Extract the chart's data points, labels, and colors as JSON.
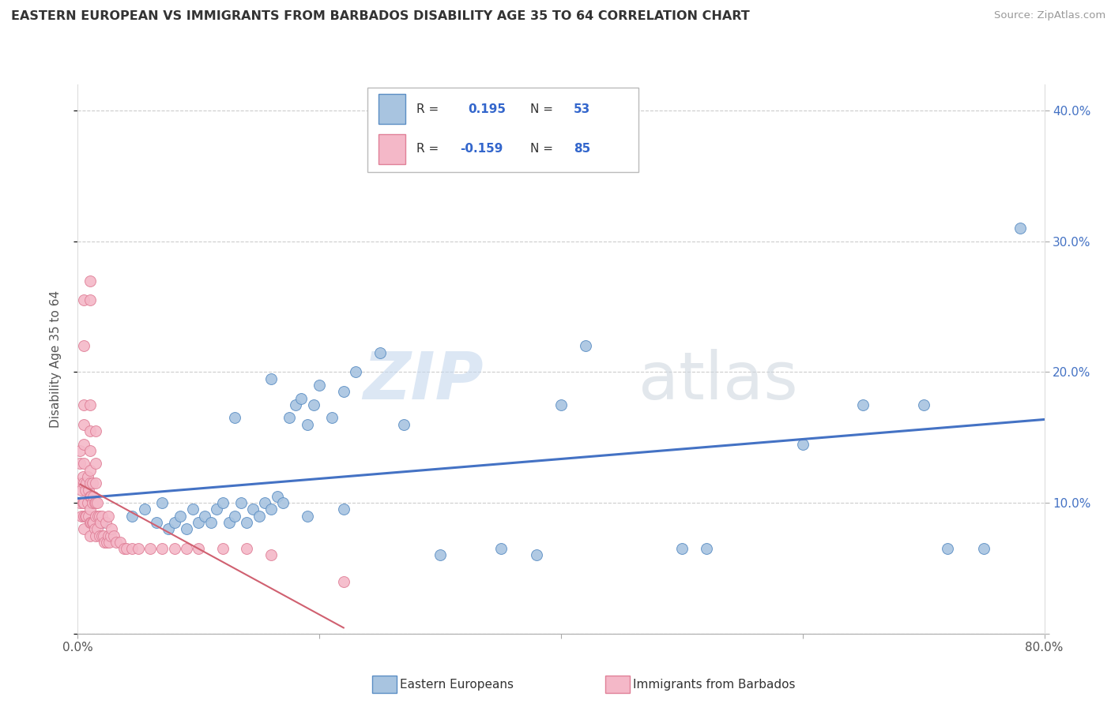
{
  "title": "EASTERN EUROPEAN VS IMMIGRANTS FROM BARBADOS DISABILITY AGE 35 TO 64 CORRELATION CHART",
  "source": "Source: ZipAtlas.com",
  "ylabel": "Disability Age 35 to 64",
  "xlim": [
    0.0,
    0.8
  ],
  "ylim": [
    0.0,
    0.42
  ],
  "xticks": [
    0.0,
    0.2,
    0.4,
    0.6,
    0.8
  ],
  "xtick_labels": [
    "0.0%",
    "",
    "",
    "",
    "80.0%"
  ],
  "yticks": [
    0.0,
    0.1,
    0.2,
    0.3,
    0.4
  ],
  "right_ytick_labels": [
    "",
    "10.0%",
    "20.0%",
    "30.0%",
    "40.0%"
  ],
  "eastern_color": "#a8c4e0",
  "barbados_color": "#f4b8c8",
  "eastern_edge_color": "#5b8ec4",
  "barbados_edge_color": "#e08098",
  "eastern_line_color": "#4472c4",
  "barbados_line_color": "#d06070",
  "grid_color": "#cccccc",
  "eastern_scatter_x": [
    0.02,
    0.045,
    0.055,
    0.065,
    0.07,
    0.075,
    0.08,
    0.085,
    0.09,
    0.095,
    0.1,
    0.105,
    0.11,
    0.115,
    0.12,
    0.125,
    0.13,
    0.135,
    0.14,
    0.145,
    0.15,
    0.155,
    0.16,
    0.165,
    0.17,
    0.175,
    0.18,
    0.185,
    0.19,
    0.195,
    0.2,
    0.21,
    0.22,
    0.23,
    0.25,
    0.27,
    0.3,
    0.35,
    0.38,
    0.4,
    0.42,
    0.5,
    0.52,
    0.6,
    0.65,
    0.7,
    0.72,
    0.75,
    0.78,
    0.13,
    0.16,
    0.19,
    0.22
  ],
  "eastern_scatter_y": [
    0.085,
    0.09,
    0.095,
    0.085,
    0.1,
    0.08,
    0.085,
    0.09,
    0.08,
    0.095,
    0.085,
    0.09,
    0.085,
    0.095,
    0.1,
    0.085,
    0.09,
    0.1,
    0.085,
    0.095,
    0.09,
    0.1,
    0.095,
    0.105,
    0.1,
    0.165,
    0.175,
    0.18,
    0.16,
    0.175,
    0.19,
    0.165,
    0.185,
    0.2,
    0.215,
    0.16,
    0.06,
    0.065,
    0.06,
    0.175,
    0.22,
    0.065,
    0.065,
    0.145,
    0.175,
    0.175,
    0.065,
    0.065,
    0.31,
    0.165,
    0.195,
    0.09,
    0.095
  ],
  "barbados_scatter_x": [
    0.002,
    0.002,
    0.002,
    0.002,
    0.003,
    0.003,
    0.004,
    0.004,
    0.005,
    0.005,
    0.005,
    0.005,
    0.005,
    0.005,
    0.005,
    0.005,
    0.005,
    0.005,
    0.006,
    0.006,
    0.007,
    0.007,
    0.008,
    0.008,
    0.009,
    0.009,
    0.01,
    0.01,
    0.01,
    0.01,
    0.01,
    0.01,
    0.01,
    0.01,
    0.01,
    0.01,
    0.01,
    0.011,
    0.011,
    0.012,
    0.012,
    0.012,
    0.013,
    0.013,
    0.014,
    0.014,
    0.015,
    0.015,
    0.015,
    0.015,
    0.015,
    0.015,
    0.016,
    0.016,
    0.017,
    0.018,
    0.018,
    0.019,
    0.02,
    0.02,
    0.021,
    0.022,
    0.023,
    0.024,
    0.025,
    0.025,
    0.026,
    0.027,
    0.028,
    0.03,
    0.032,
    0.035,
    0.038,
    0.04,
    0.045,
    0.05,
    0.06,
    0.07,
    0.08,
    0.09,
    0.1,
    0.12,
    0.14,
    0.16,
    0.22
  ],
  "barbados_scatter_y": [
    0.1,
    0.115,
    0.13,
    0.14,
    0.09,
    0.11,
    0.1,
    0.12,
    0.08,
    0.09,
    0.1,
    0.115,
    0.13,
    0.145,
    0.16,
    0.175,
    0.22,
    0.255,
    0.09,
    0.11,
    0.09,
    0.115,
    0.1,
    0.12,
    0.09,
    0.11,
    0.075,
    0.085,
    0.095,
    0.105,
    0.115,
    0.125,
    0.14,
    0.155,
    0.175,
    0.255,
    0.27,
    0.085,
    0.105,
    0.085,
    0.1,
    0.115,
    0.085,
    0.105,
    0.08,
    0.1,
    0.075,
    0.09,
    0.1,
    0.115,
    0.13,
    0.155,
    0.08,
    0.1,
    0.09,
    0.075,
    0.09,
    0.085,
    0.075,
    0.09,
    0.075,
    0.07,
    0.085,
    0.07,
    0.075,
    0.09,
    0.07,
    0.075,
    0.08,
    0.075,
    0.07,
    0.07,
    0.065,
    0.065,
    0.065,
    0.065,
    0.065,
    0.065,
    0.065,
    0.065,
    0.065,
    0.065,
    0.065,
    0.06,
    0.04
  ],
  "eastern_R": 0.195,
  "eastern_N": 53,
  "barbados_R": -0.159,
  "barbados_N": 85,
  "watermark_zip_color": "#c5d8ee",
  "watermark_atlas_color": "#d0d8e0"
}
